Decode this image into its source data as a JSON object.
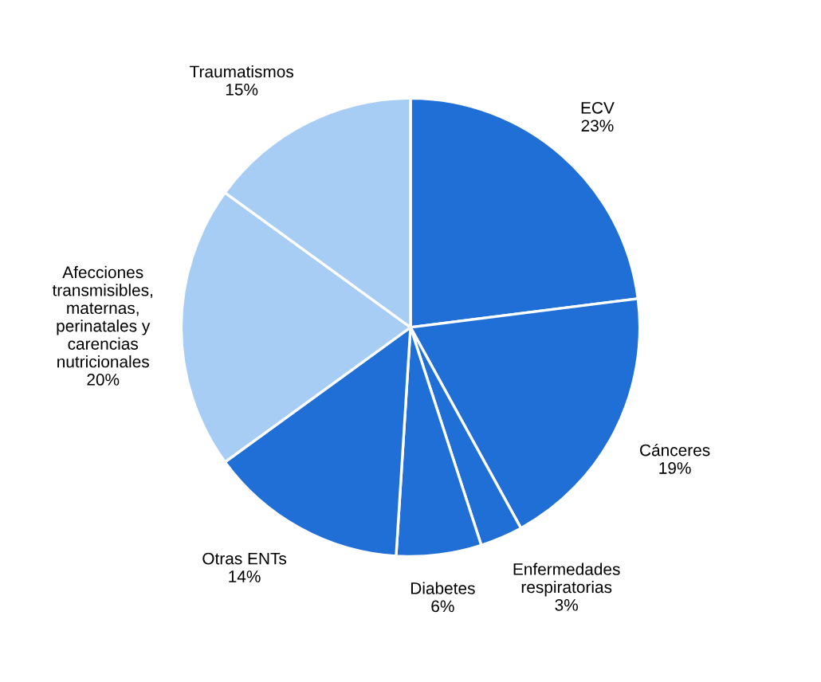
{
  "chart_data": {
    "type": "pie",
    "categories": [
      "ECV\n23%",
      "Cánceres\n19%",
      "Enfermedades\nrespiratorias\n3%",
      "Diabetes\n6%",
      "Otras ENTs\n14%",
      "Afecciones\ntransmisibles,\nmaternas,\nperinatales y\ncarencias\nnutricionales\n20%",
      "Traumatismos\n15%"
    ],
    "values": [
      23,
      19,
      3,
      6,
      14,
      20,
      15
    ],
    "colors": [
      "#1f6fd6",
      "#1f6fd6",
      "#1f6fd6",
      "#1f6fd6",
      "#1f6fd6",
      "#a8cdf5",
      "#a8cdf5"
    ]
  }
}
